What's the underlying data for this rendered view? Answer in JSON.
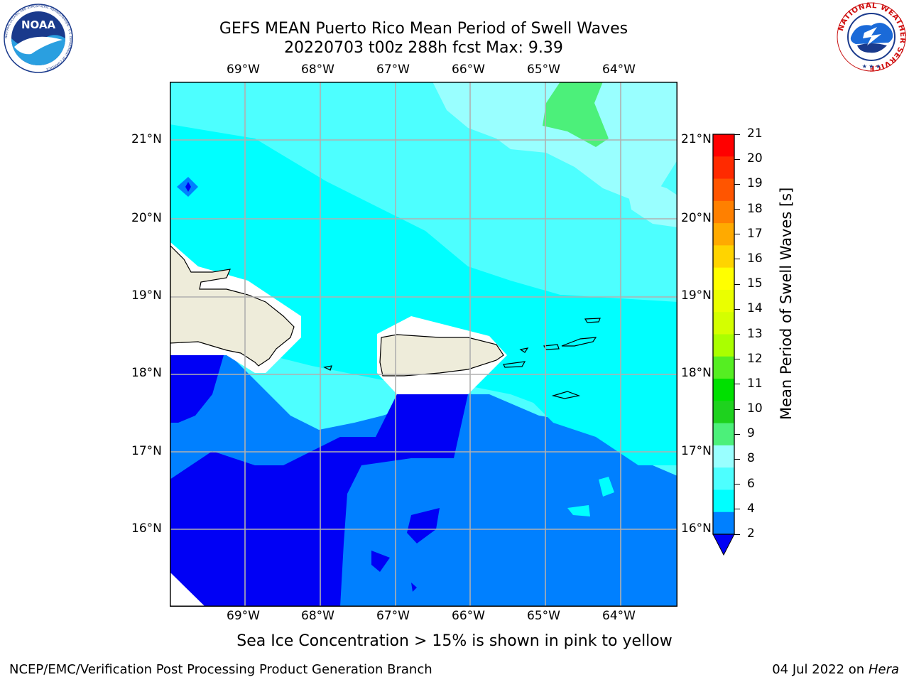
{
  "header": {
    "title_line1": "GEFS MEAN Puerto Rico Mean Period of Swell Waves",
    "title_line2": "20220703 t00z 288h fcst   Max: 9.39"
  },
  "logos": {
    "noaa_text": "NOAA",
    "noaa_ring": "NATIONAL OCEANIC AND ATMOSPHERIC ADMINISTRATION · U.S. DEPARTMENT OF COMMERCE",
    "nws_ring": "NATIONAL WEATHER SERVICE"
  },
  "map": {
    "lon_labels": [
      "69°W",
      "68°W",
      "67°W",
      "66°W",
      "65°W",
      "64°W"
    ],
    "lat_labels": [
      "21°N",
      "20°N",
      "19°N",
      "18°N",
      "17°N",
      "16°N"
    ],
    "colors": {
      "below2": "#0000f5",
      "c2_4": "#0080ff",
      "c4_6": "#00ffff",
      "c6_8": "#4dffff",
      "c8_9": "#99ffff",
      "c9_10": "#4cf07a",
      "land": "#eeecda"
    }
  },
  "colorbar": {
    "label": "Mean Period of Swell Waves [s]",
    "ticks": [
      "21",
      "20",
      "19",
      "18",
      "17",
      "16",
      "15",
      "14",
      "13",
      "12",
      "11",
      "10",
      "9",
      "8",
      "6",
      "4",
      "2"
    ],
    "colors": [
      "#ff0000",
      "#ff2a00",
      "#ff5500",
      "#ff8000",
      "#ffaa00",
      "#ffd400",
      "#ffff00",
      "#eaff00",
      "#d4ff00",
      "#aaff00",
      "#55ee22",
      "#00e000",
      "#1ed21e",
      "#4cf07a",
      "#99ffff",
      "#4dffff",
      "#00ffff",
      "#0080ff"
    ],
    "under_color": "#0000f5"
  },
  "footer": {
    "note": "Sea Ice Concentration > 15% is shown in pink to yellow",
    "credit": "NCEP/EMC/Verification Post Processing Product Generation Branch",
    "date": "04 Jul 2022 on ",
    "machine": "Hera"
  }
}
